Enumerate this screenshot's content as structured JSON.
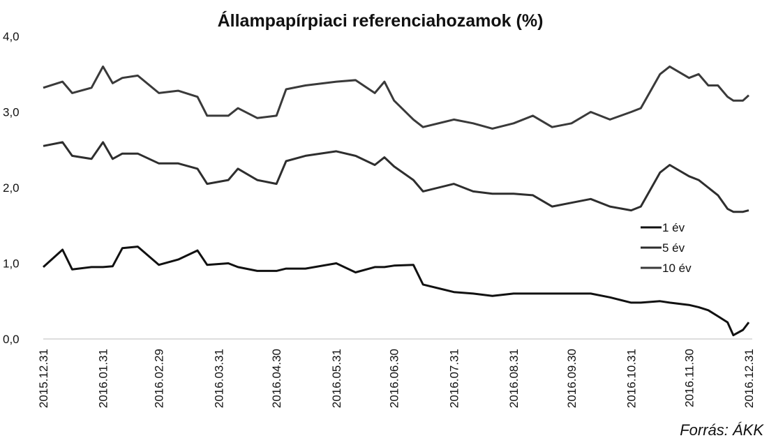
{
  "chart_data": {
    "type": "line",
    "title": "Állampapírpiaci referenciahozamok (%)",
    "source": "Forrás: ÁKK",
    "x": [
      "2015.12.31",
      "2016.01.10",
      "2016.01.15",
      "2016.01.25",
      "2016.01.31",
      "2016.02.05",
      "2016.02.10",
      "2016.02.18",
      "2016.02.29",
      "2016.03.10",
      "2016.03.20",
      "2016.03.25",
      "2016.04.05",
      "2016.04.10",
      "2016.04.20",
      "2016.04.30",
      "2016.05.05",
      "2016.05.15",
      "2016.05.31",
      "2016.06.10",
      "2016.06.20",
      "2016.06.25",
      "2016.06.30",
      "2016.07.10",
      "2016.07.15",
      "2016.07.31",
      "2016.08.10",
      "2016.08.20",
      "2016.08.31",
      "2016.09.10",
      "2016.09.20",
      "2016.09.30",
      "2016.10.10",
      "2016.10.20",
      "2016.10.31",
      "2016.11.05",
      "2016.11.15",
      "2016.11.20",
      "2016.11.30",
      "2016.12.05",
      "2016.12.10",
      "2016.12.15",
      "2016.12.20",
      "2016.12.23",
      "2016.12.28",
      "2016.12.31"
    ],
    "series": [
      {
        "name": "1 év",
        "color": "#111111",
        "values": [
          0.95,
          1.18,
          0.92,
          0.95,
          0.95,
          0.96,
          1.2,
          1.22,
          0.98,
          1.05,
          1.17,
          0.98,
          1.0,
          0.95,
          0.9,
          0.9,
          0.93,
          0.93,
          1.0,
          0.88,
          0.95,
          0.95,
          0.97,
          0.98,
          0.72,
          0.62,
          0.6,
          0.57,
          0.6,
          0.6,
          0.6,
          0.6,
          0.6,
          0.55,
          0.48,
          0.48,
          0.5,
          0.48,
          0.45,
          0.42,
          0.38,
          0.3,
          0.22,
          0.05,
          0.12,
          0.22
        ]
      },
      {
        "name": "5 év",
        "color": "#2e2e2e",
        "values": [
          2.55,
          2.6,
          2.42,
          2.38,
          2.6,
          2.38,
          2.45,
          2.45,
          2.32,
          2.32,
          2.25,
          2.05,
          2.1,
          2.25,
          2.1,
          2.05,
          2.35,
          2.42,
          2.48,
          2.42,
          2.3,
          2.4,
          2.28,
          2.1,
          1.95,
          2.05,
          1.95,
          1.92,
          1.92,
          1.9,
          1.75,
          1.8,
          1.85,
          1.75,
          1.7,
          1.75,
          2.2,
          2.3,
          2.15,
          2.1,
          2.0,
          1.9,
          1.72,
          1.68,
          1.68,
          1.7
        ]
      },
      {
        "name": "10 év",
        "color": "#3a3a3a",
        "values": [
          3.32,
          3.4,
          3.25,
          3.32,
          3.6,
          3.38,
          3.45,
          3.48,
          3.25,
          3.28,
          3.2,
          2.95,
          2.95,
          3.05,
          2.92,
          2.95,
          3.3,
          3.35,
          3.4,
          3.42,
          3.25,
          3.4,
          3.15,
          2.9,
          2.8,
          2.9,
          2.85,
          2.78,
          2.85,
          2.95,
          2.8,
          2.85,
          3.0,
          2.9,
          3.0,
          3.05,
          3.5,
          3.6,
          3.45,
          3.5,
          3.35,
          3.35,
          3.2,
          3.15,
          3.15,
          3.22
        ]
      }
    ],
    "xlim": [
      "2015.12.31",
      "2016.12.31"
    ],
    "xticks": [
      "2015.12.31",
      "2016.01.31",
      "2016.02.29",
      "2016.03.31",
      "2016.04.30",
      "2016.05.31",
      "2016.06.30",
      "2016.07.31",
      "2016.08.31",
      "2016.09.30",
      "2016.10.31",
      "2016.11.30",
      "2016.12.31"
    ],
    "ylim": [
      0,
      4
    ],
    "yticks": [
      {
        "value": 0,
        "label": "0,0"
      },
      {
        "value": 1,
        "label": "1,0"
      },
      {
        "value": 2,
        "label": "2,0"
      },
      {
        "value": 3,
        "label": "3,0"
      },
      {
        "value": 4,
        "label": "4,0"
      }
    ],
    "grid": false,
    "legend": "right"
  }
}
